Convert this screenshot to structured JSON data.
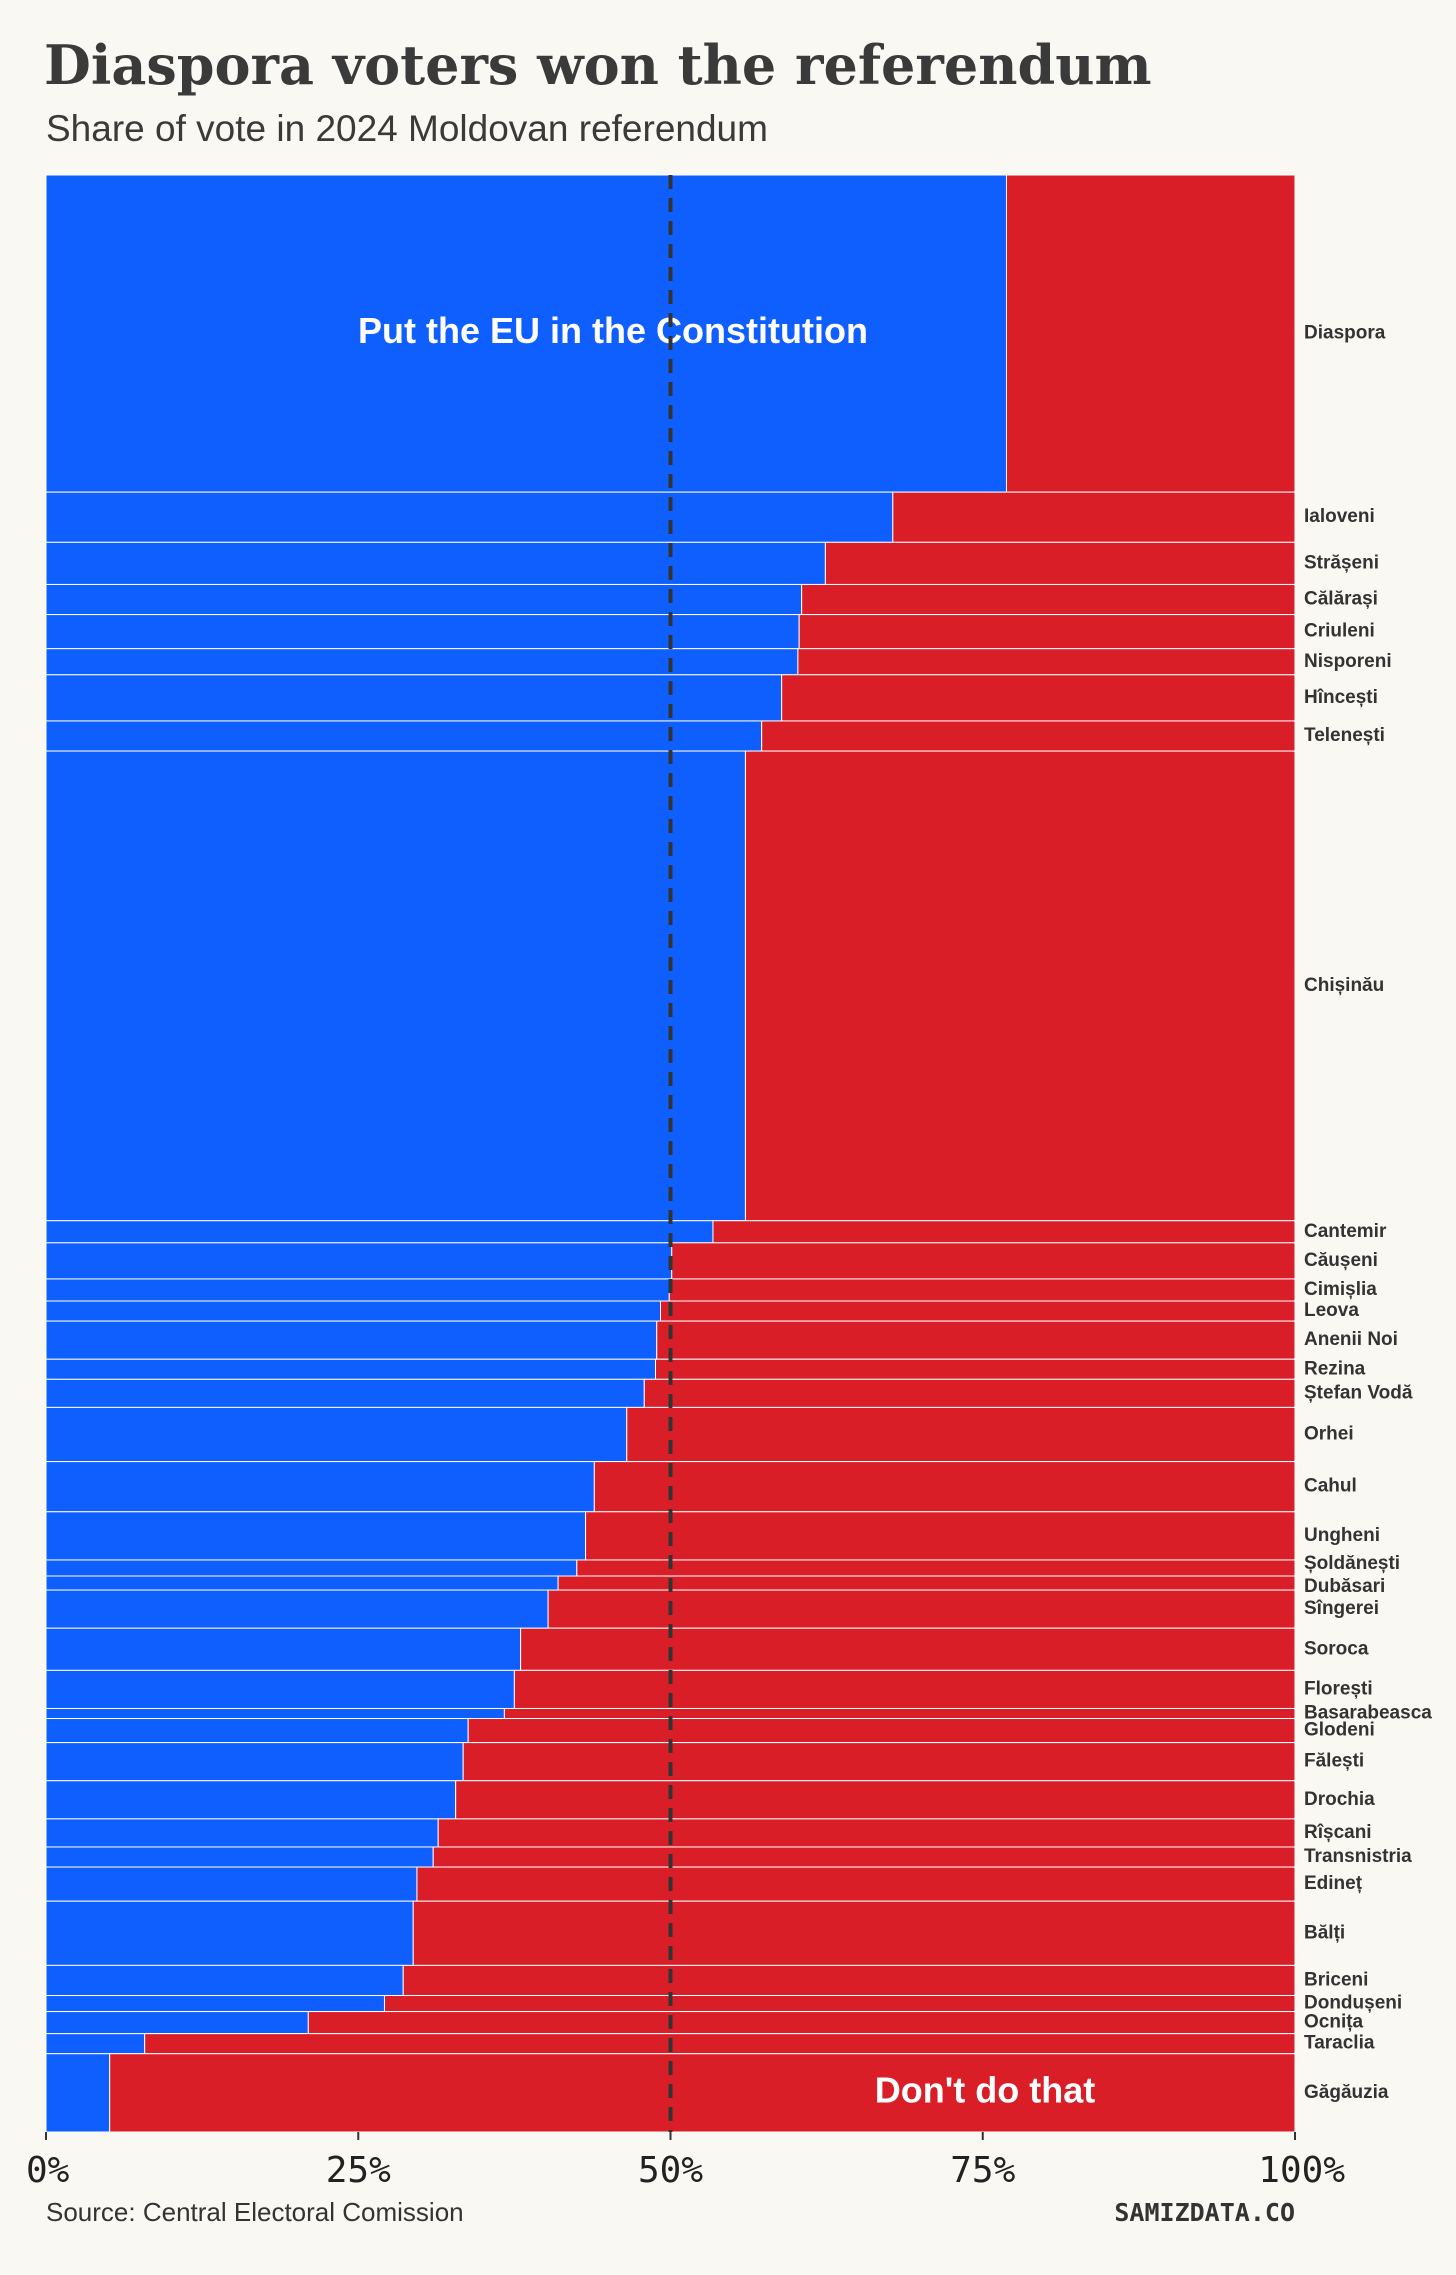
{
  "chart_data": {
    "type": "marimekko",
    "title": "Diaspora voters won the referendum",
    "subtitle": "Share of vote in 2024 Moldovan referendum",
    "source": "Source: Central Electoral Comission",
    "brand": "SAMIZDATA.CO",
    "categories": [
      "Diaspora",
      "Ialoveni",
      "Strășeni",
      "Călărași",
      "Criuleni",
      "Nisporeni",
      "Hîncești",
      "Telenești",
      "Chișinău",
      "Cantemir",
      "Căușeni",
      "Cimișlia",
      "Leova",
      "Anenii Noi",
      "Rezina",
      "Ștefan Vodă",
      "Orhei",
      "Cahul",
      "Ungheni",
      "Șoldănești",
      "Dubăsari",
      "Sîngerei",
      "Soroca",
      "Florești",
      "Basarabeasca",
      "Glodeni",
      "Fălești",
      "Drochia",
      "Rîșcani",
      "Transnistria",
      "Edineț",
      "Bălți",
      "Briceni",
      "Dondușeni",
      "Ocnița",
      "Taraclia",
      "Găgăuzia"
    ],
    "weights": [
      15.8,
      2.5,
      2.1,
      1.5,
      1.7,
      1.3,
      2.3,
      1.5,
      23.4,
      1.1,
      1.8,
      1.1,
      1.0,
      1.9,
      1.0,
      1.4,
      2.7,
      2.5,
      2.4,
      0.8,
      0.7,
      1.9,
      2.1,
      1.9,
      0.5,
      1.2,
      1.9,
      1.9,
      1.4,
      1.0,
      1.7,
      3.2,
      1.5,
      0.8,
      1.1,
      1.0,
      3.9
    ],
    "series": [
      {
        "name": "Put the EU in the Constitution",
        "color": "#0f5fff",
        "values": [
          76.9,
          67.8,
          62.4,
          60.5,
          60.3,
          60.2,
          58.9,
          57.3,
          56.0,
          53.4,
          50.1,
          49.9,
          49.2,
          48.9,
          48.8,
          47.9,
          46.5,
          43.9,
          43.2,
          42.5,
          41.0,
          40.2,
          38.0,
          37.5,
          36.7,
          33.8,
          33.4,
          32.8,
          31.4,
          31.0,
          29.7,
          29.4,
          28.6,
          27.1,
          21.0,
          7.9,
          5.1
        ]
      },
      {
        "name": "Don't do that",
        "color": "#d91e27",
        "values": [
          23.1,
          32.2,
          37.6,
          39.5,
          39.7,
          39.8,
          41.1,
          42.7,
          44.0,
          46.6,
          49.9,
          50.1,
          50.8,
          51.1,
          51.2,
          52.1,
          53.5,
          56.1,
          56.8,
          57.5,
          59.0,
          59.8,
          62.0,
          62.5,
          63.3,
          66.2,
          66.6,
          67.2,
          68.6,
          69.0,
          70.3,
          70.6,
          71.4,
          72.9,
          79.0,
          92.1,
          94.9
        ]
      }
    ],
    "xlim": [
      0,
      100
    ],
    "xticks": [
      {
        "value": 0,
        "label": "0%"
      },
      {
        "value": 25,
        "label": "25%"
      },
      {
        "value": 50,
        "label": "50%"
      },
      {
        "value": 75,
        "label": "75%"
      },
      {
        "value": 100,
        "label": "100%"
      }
    ],
    "reference_line": 50
  }
}
